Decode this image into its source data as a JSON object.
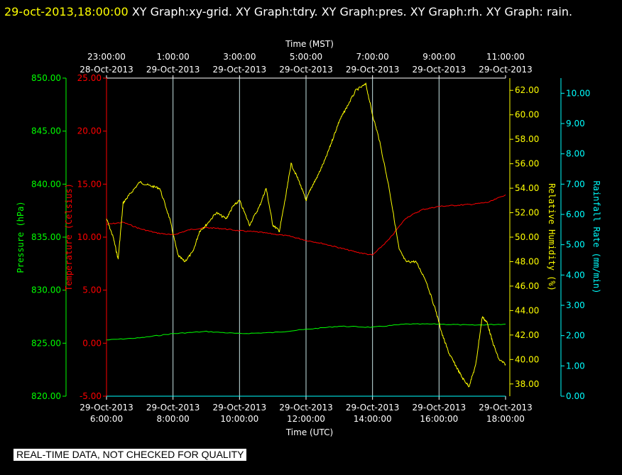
{
  "header": {
    "timestamp": "29-oct-2013,18:00:00",
    "title": "XY Graph:xy-grid.  XY Graph:tdry.  XY Graph:pres.  XY Graph:rh.  XY Graph: rain."
  },
  "notice": "REAL-TIME DATA, NOT CHECKED FOR QUALITY",
  "colors": {
    "background": "#000000",
    "frame": "#ffffff",
    "grid": "#c8e6e6",
    "pressure": "#00ff00",
    "temperature": "#ff0000",
    "humidity": "#ffff00",
    "rain": "#00ffff"
  },
  "chart_data": {
    "type": "line",
    "top_axis": {
      "label": "Time (MST)",
      "ticks": [
        {
          "time": "23:00:00",
          "date": "28-Oct-2013"
        },
        {
          "time": "1:00:00",
          "date": "29-Oct-2013"
        },
        {
          "time": "3:00:00",
          "date": "29-Oct-2013"
        },
        {
          "time": "5:00:00",
          "date": "29-Oct-2013"
        },
        {
          "time": "7:00:00",
          "date": "29-Oct-2013"
        },
        {
          "time": "9:00:00",
          "date": "29-Oct-2013"
        },
        {
          "time": "11:00:00",
          "date": "29-Oct-2013"
        }
      ]
    },
    "bottom_axis": {
      "label": "Time (UTC)",
      "ticks": [
        {
          "date": "29-Oct-2013",
          "time": "6:00:00"
        },
        {
          "date": "29-Oct-2013",
          "time": "8:00:00"
        },
        {
          "date": "29-Oct-2013",
          "time": "10:00:00"
        },
        {
          "date": "29-Oct-2013",
          "time": "12:00:00"
        },
        {
          "date": "29-Oct-2013",
          "time": "14:00:00"
        },
        {
          "date": "29-Oct-2013",
          "time": "16:00:00"
        },
        {
          "date": "29-Oct-2013",
          "time": "18:00:00"
        }
      ],
      "range_hours_utc": [
        6,
        18
      ]
    },
    "axes": {
      "pressure": {
        "label": "Pressure (hPa)",
        "range": [
          820,
          850
        ],
        "ticks": [
          "820.00",
          "825.00",
          "830.00",
          "835.00",
          "840.00",
          "845.00",
          "850.00"
        ]
      },
      "temperature": {
        "label": "Temperature (Celsius)",
        "range": [
          -5,
          25
        ],
        "ticks": [
          "-5.00",
          "0.00",
          "5.00",
          "10.00",
          "15.00",
          "20.00",
          "25.00"
        ]
      },
      "humidity": {
        "label": "Relative Humidity (%)",
        "range": [
          37,
          63
        ],
        "ticks": [
          "38.00",
          "40.00",
          "42.00",
          "44.00",
          "46.00",
          "48.00",
          "50.00",
          "52.00",
          "54.00",
          "56.00",
          "58.00",
          "60.00",
          "62.00"
        ]
      },
      "rain": {
        "label": "Rainfall Rate (mm/min)",
        "range": [
          0,
          10.5
        ],
        "ticks": [
          "0.00",
          "1.00",
          "2.00",
          "3.00",
          "4.00",
          "5.00",
          "6.00",
          "7.00",
          "8.00",
          "9.00",
          "10.00"
        ]
      }
    },
    "series": [
      {
        "key": "temperature",
        "axis": "temperature",
        "x": [
          6.0,
          6.5,
          7.0,
          7.5,
          8.0,
          8.5,
          9.0,
          9.5,
          10.0,
          10.5,
          11.0,
          11.5,
          12.0,
          12.5,
          13.0,
          13.5,
          14.0,
          14.5,
          15.0,
          15.5,
          16.0,
          16.5,
          17.0,
          17.5,
          18.0
        ],
        "y": [
          11.2,
          11.4,
          10.8,
          10.4,
          10.2,
          10.7,
          10.9,
          10.8,
          10.6,
          10.5,
          10.3,
          10.1,
          9.7,
          9.4,
          9.0,
          8.6,
          8.3,
          9.8,
          11.8,
          12.6,
          12.9,
          13.0,
          13.1,
          13.3,
          14.0
        ]
      },
      {
        "key": "pressure",
        "axis": "pressure",
        "x": [
          6.0,
          7.0,
          8.0,
          9.0,
          10.0,
          11.0,
          12.0,
          13.0,
          14.0,
          15.0,
          16.0,
          17.0,
          18.0
        ],
        "y": [
          825.3,
          825.5,
          825.9,
          826.1,
          825.9,
          826.0,
          826.3,
          826.6,
          826.5,
          826.8,
          826.8,
          826.7,
          826.8
        ]
      },
      {
        "key": "humidity",
        "axis": "humidity",
        "x": [
          6.0,
          6.2,
          6.35,
          6.5,
          6.7,
          7.0,
          7.3,
          7.6,
          7.9,
          8.15,
          8.35,
          8.6,
          8.8,
          9.0,
          9.3,
          9.6,
          9.8,
          10.0,
          10.3,
          10.6,
          10.8,
          11.0,
          11.2,
          11.4,
          11.55,
          11.8,
          12.0,
          12.15,
          12.35,
          12.6,
          12.8,
          13.0,
          13.2,
          13.5,
          13.8,
          14.0,
          14.2,
          14.5,
          14.8,
          15.0,
          15.3,
          15.6,
          15.9,
          16.1,
          16.3,
          16.5,
          16.7,
          16.9,
          17.1,
          17.3,
          17.45,
          17.6,
          17.8,
          18.0
        ],
        "y": [
          51.5,
          50.0,
          48.2,
          52.8,
          53.5,
          54.5,
          54.2,
          54.0,
          51.5,
          48.5,
          48.0,
          48.8,
          50.5,
          51.0,
          52.0,
          51.5,
          52.5,
          53.0,
          51.0,
          52.5,
          54.0,
          51.0,
          50.5,
          53.5,
          56.0,
          54.5,
          53.0,
          54.0,
          55.0,
          56.5,
          58.0,
          59.5,
          60.5,
          62.0,
          62.5,
          60.0,
          58.0,
          54.0,
          49.0,
          48.0,
          48.0,
          46.5,
          44.0,
          42.0,
          40.5,
          39.5,
          38.5,
          37.8,
          39.5,
          43.5,
          43.0,
          41.5,
          40.0,
          39.6
        ]
      },
      {
        "key": "rain",
        "axis": "rain",
        "x": [
          6.0,
          18.0
        ],
        "y": [
          0.0,
          0.0
        ]
      }
    ],
    "grid": true
  }
}
